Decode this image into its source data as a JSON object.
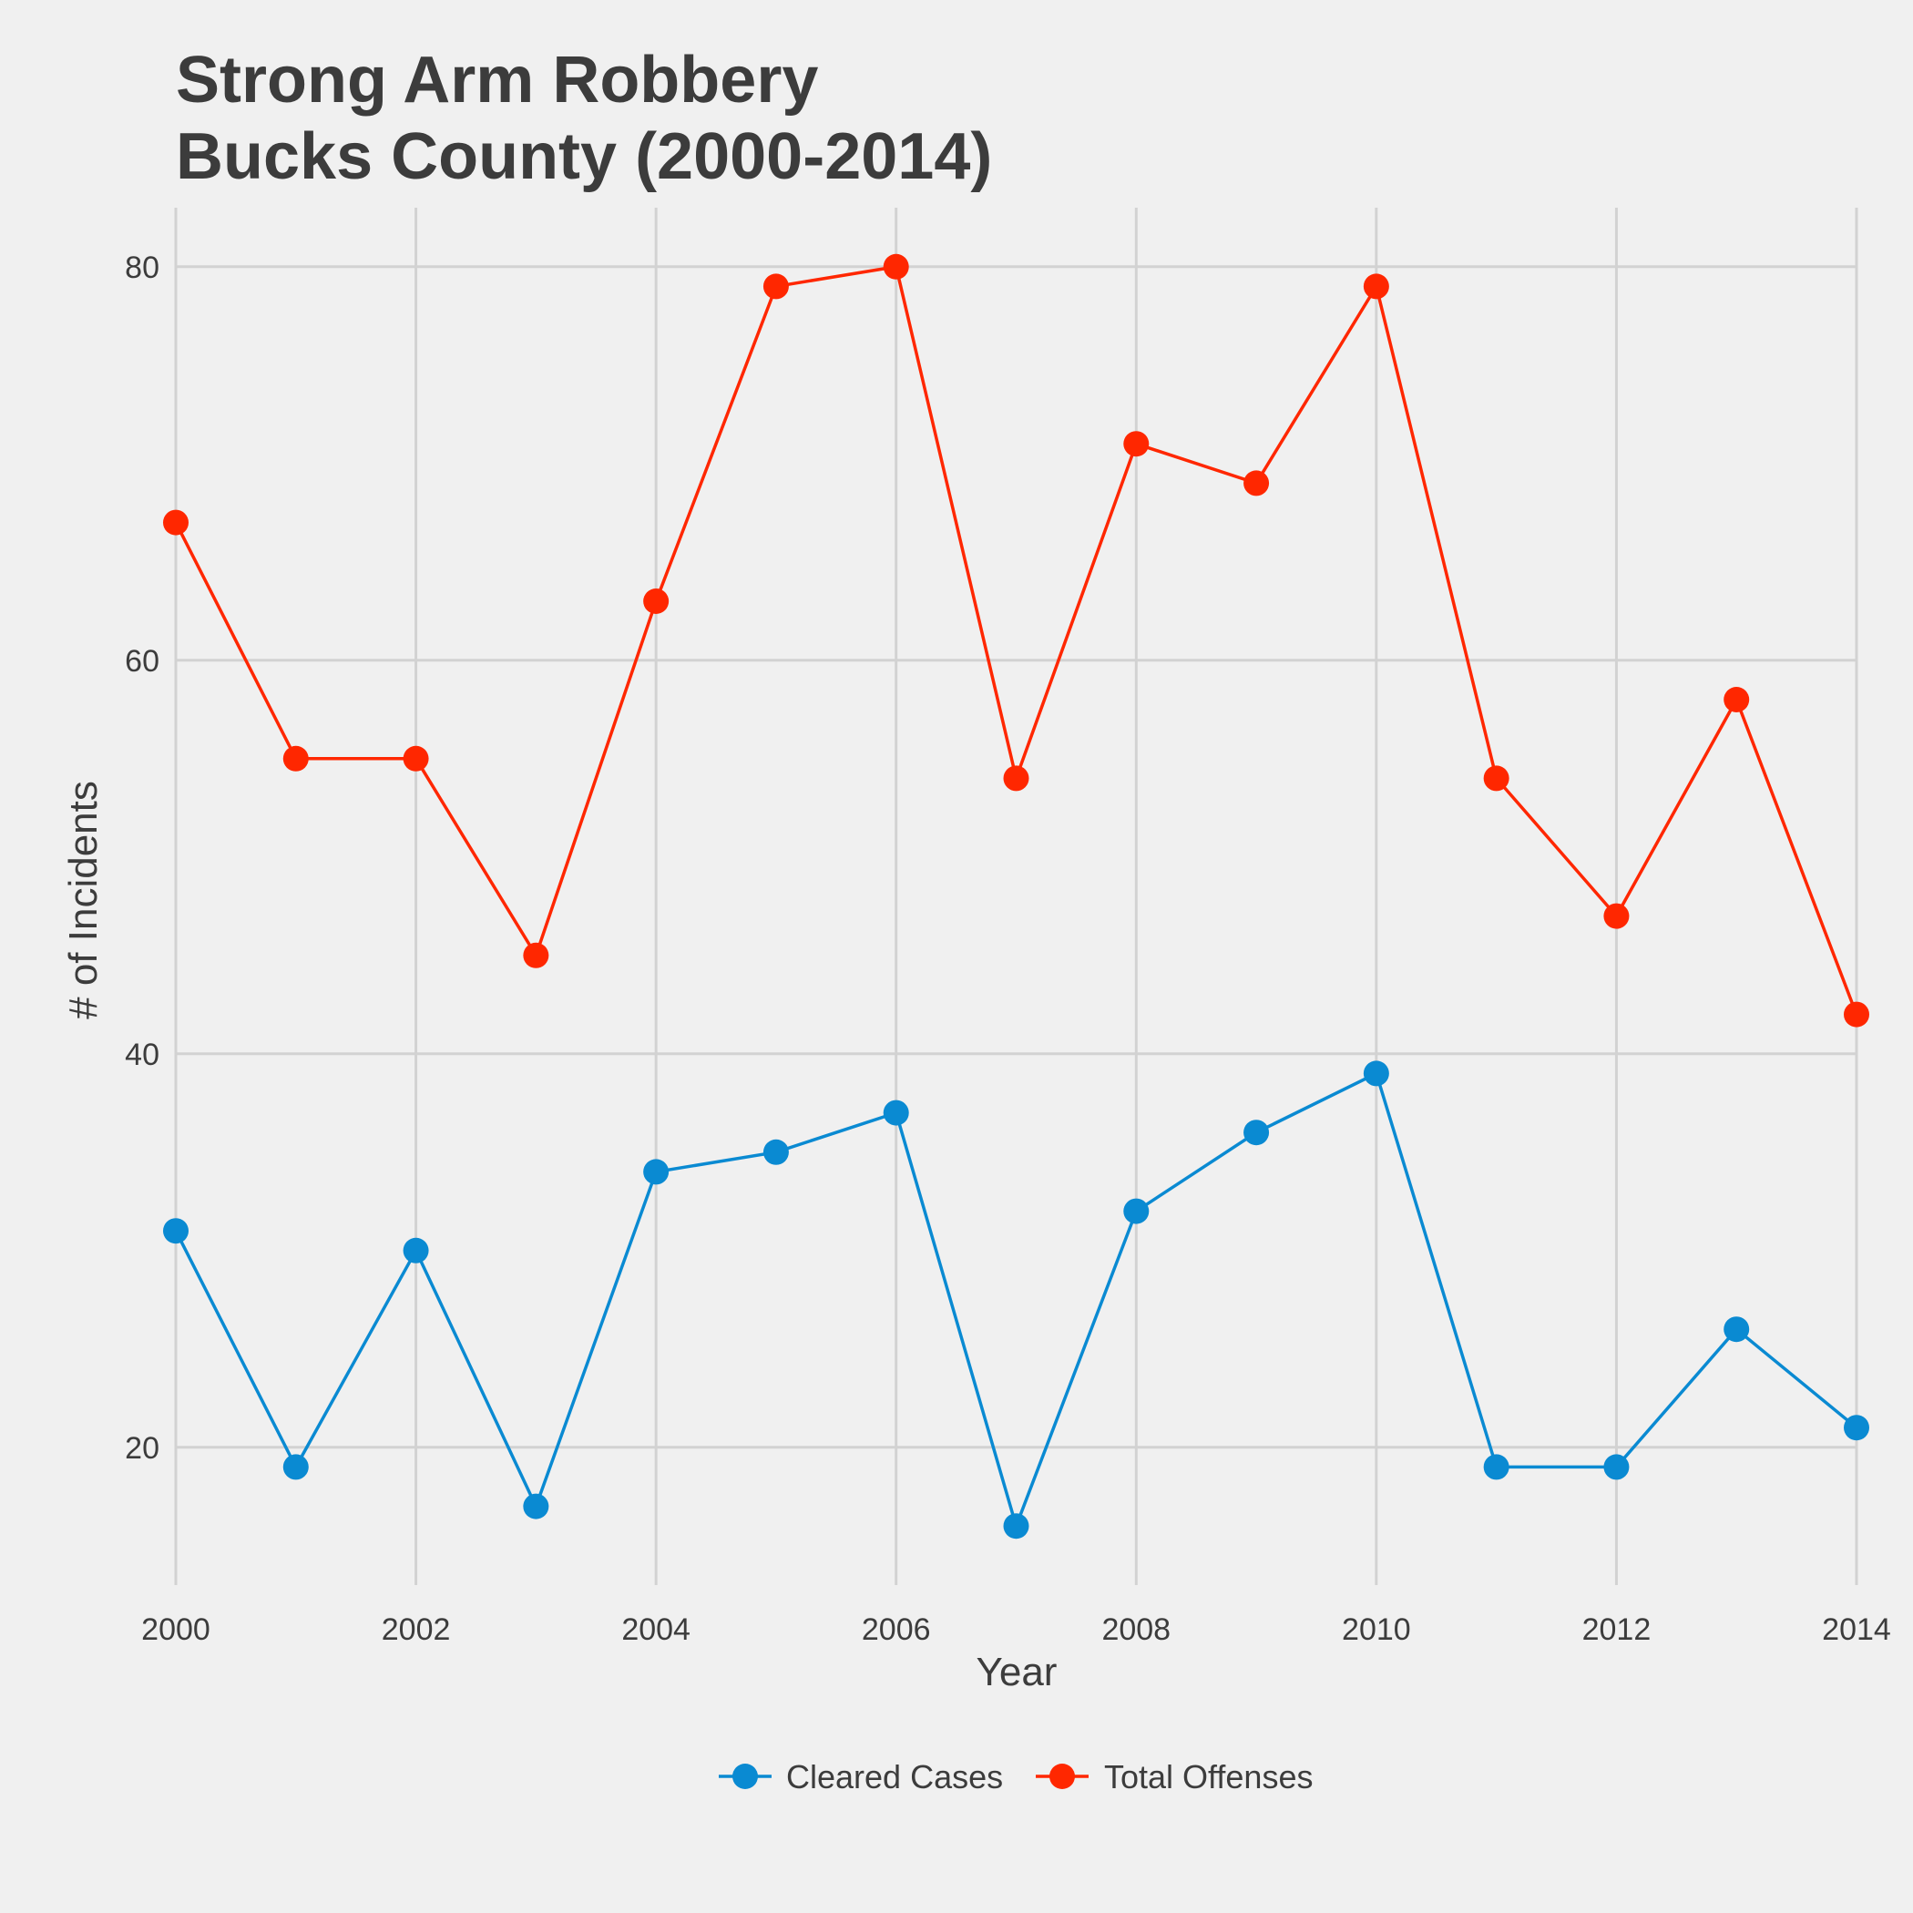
{
  "chart_data": {
    "type": "line",
    "title": [
      "Strong Arm Robbery",
      "Bucks County (2000-2014)"
    ],
    "xlabel": "Year",
    "ylabel": "# of Incidents",
    "x": [
      2000,
      2001,
      2002,
      2003,
      2004,
      2005,
      2006,
      2007,
      2008,
      2009,
      2010,
      2011,
      2012,
      2013,
      2014
    ],
    "x_ticks": [
      "2000",
      "2002",
      "2004",
      "2006",
      "2008",
      "2010",
      "2012",
      "2014"
    ],
    "y_ticks": [
      "20",
      "40",
      "60",
      "80"
    ],
    "xlim": [
      2000,
      2014
    ],
    "ylim": [
      13,
      83
    ],
    "grid": true,
    "legend_position": "bottom",
    "series": [
      {
        "name": "Cleared Cases",
        "color": "#0a8ad2",
        "values": [
          31,
          19,
          30,
          17,
          34,
          35,
          37,
          16,
          32,
          36,
          39,
          19,
          19,
          26,
          21
        ]
      },
      {
        "name": "Total Offenses",
        "color": "#ff2700",
        "values": [
          67,
          55,
          55,
          45,
          63,
          79,
          80,
          54,
          71,
          69,
          79,
          54,
          47,
          58,
          42
        ]
      }
    ]
  }
}
